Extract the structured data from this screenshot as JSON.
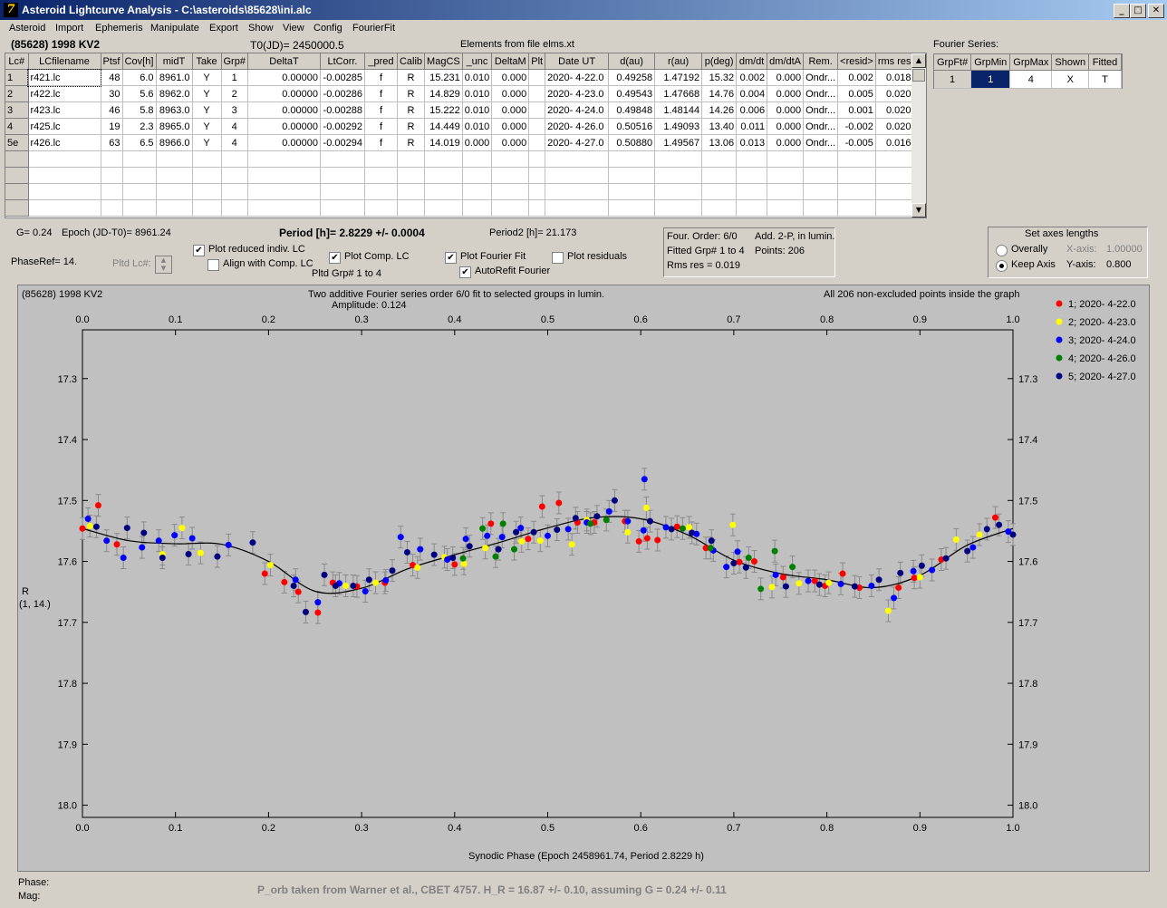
{
  "window": {
    "title": "Asteroid Lightcurve Analysis - C:\\asteroids\\85628\\ini.alc",
    "min": "_",
    "max": "□",
    "close": "✕"
  },
  "menu": [
    "Asteroid",
    "Import",
    "Ephemeris",
    "Manipulate",
    "Export",
    "Show",
    "View",
    "Config",
    "FourierFit"
  ],
  "header": {
    "object": "(85628) 1998 KV2",
    "t0": "T0(JD)= 2450000.5",
    "elements": "Elements from file elms.xt"
  },
  "table": {
    "columns": [
      "Lc#",
      "LCfilename",
      "Ptsf",
      "Cov[h]",
      "midT",
      "Take",
      "Grp#",
      "DeltaT",
      "LtCorr.",
      "_pred",
      "Calib",
      "MagCS",
      "_unc",
      "DeltaM",
      "Plt",
      "Date UT",
      "d(au)",
      "r(au)",
      "p(deg)",
      "dm/dt",
      "dm/dtA",
      "Rem.",
      "<resid>",
      "rms res"
    ],
    "rows": [
      [
        "1",
        "r421.lc",
        "48",
        "6.0",
        "8961.0",
        "Y",
        "1",
        "0.00000",
        "-0.00285",
        "f",
        "R",
        "15.231",
        "0.010",
        "0.000",
        "",
        "2020- 4-22.0",
        "0.49258",
        "1.47192",
        "15.32",
        "0.002",
        "0.000",
        "Ondr...",
        "0.002",
        "0.018"
      ],
      [
        "2",
        "r422.lc",
        "30",
        "5.6",
        "8962.0",
        "Y",
        "2",
        "0.00000",
        "-0.00286",
        "f",
        "R",
        "14.829",
        "0.010",
        "0.000",
        "",
        "2020- 4-23.0",
        "0.49543",
        "1.47668",
        "14.76",
        "0.004",
        "0.000",
        "Ondr...",
        "0.005",
        "0.020"
      ],
      [
        "3",
        "r423.lc",
        "46",
        "5.8",
        "8963.0",
        "Y",
        "3",
        "0.00000",
        "-0.00288",
        "f",
        "R",
        "15.222",
        "0.010",
        "0.000",
        "",
        "2020- 4-24.0",
        "0.49848",
        "1.48144",
        "14.26",
        "0.006",
        "0.000",
        "Ondr...",
        "0.001",
        "0.020"
      ],
      [
        "4",
        "r425.lc",
        "19",
        "2.3",
        "8965.0",
        "Y",
        "4",
        "0.00000",
        "-0.00292",
        "f",
        "R",
        "14.449",
        "0.010",
        "0.000",
        "",
        "2020- 4-26.0",
        "0.50516",
        "1.49093",
        "13.40",
        "0.011",
        "0.000",
        "Ondr...",
        "-0.002",
        "0.020"
      ],
      [
        "5e",
        "r426.lc",
        "63",
        "6.5",
        "8966.0",
        "Y",
        "4",
        "0.00000",
        "-0.00294",
        "f",
        "R",
        "14.019",
        "0.000",
        "0.000",
        "",
        "2020- 4-27.0",
        "0.50880",
        "1.49567",
        "13.06",
        "0.013",
        "0.000",
        "Ondr...",
        "-0.005",
        "0.016"
      ]
    ]
  },
  "fourier": {
    "label": "Fourier Series:",
    "columns": [
      "GrpFt#",
      "GrpMin",
      "GrpMax",
      "Shown",
      "Fitted"
    ],
    "row": [
      "1",
      "1",
      "4",
      "X",
      "T"
    ]
  },
  "params": {
    "g": "G= 0.24",
    "epoch": "Epoch (JD-T0)= 8961.24",
    "period": "Period [h]= 2.8229 +/- 0.0004",
    "period2": "Period2 [h]= 21.173",
    "phaseref": "PhaseRef= 14.",
    "pltd_lc": "Pltd Lc#:",
    "pltd_grp": "Pltd Grp#  1   to   4"
  },
  "checkboxes": {
    "plot_reduced": {
      "label": "Plot reduced indiv. LC",
      "checked": "✔"
    },
    "align_comp": {
      "label": "Align with Comp. LC",
      "checked": ""
    },
    "plot_comp": {
      "label": "Plot Comp. LC",
      "checked": "✔"
    },
    "plot_fourier": {
      "label": "Plot Fourier Fit",
      "checked": "✔"
    },
    "autorefit": {
      "label": "AutoRefit Fourier",
      "checked": "✔"
    },
    "plot_residuals": {
      "label": "Plot residuals",
      "checked": ""
    }
  },
  "fitinfo": {
    "order": "Four. Order:  6/0",
    "add": "Add. 2-P, in lumin.",
    "fitted": "Fitted Grp# 1 to 4",
    "points": "Points: 206",
    "rms": "Rms res     = 0.019"
  },
  "axes_box": {
    "title": "Set axes lengths",
    "overally": "Overally",
    "keep": "Keep Axis",
    "xaxis_label": "X-axis:",
    "xaxis_value": "1.00000",
    "yaxis_label": "Y-axis:",
    "yaxis_value": "0.800"
  },
  "plot": {
    "object": "(85628) 1998 KV2",
    "subtitle": "Two additive Fourier series order 6/0 fit to selected groups in lumin.",
    "amplitude": "Amplitude: 0.124",
    "note": "All 206 non-excluded points inside the graph",
    "ylabel": "R",
    "ylabel2": "(1, 14.)",
    "xlabel": "Synodic Phase (Epoch 2458961.74, Period 2.8229 h)"
  },
  "footer": {
    "phase": "Phase:",
    "mag": "Mag:",
    "note": "P_orb taken from Warner et al., CBET 4757.  H_R = 16.87 +/- 0.10, assuming G = 0.24 +/- 0.11"
  },
  "chart_data": {
    "type": "scatter",
    "xlim": [
      0.0,
      1.0
    ],
    "ylim": [
      17.22,
      18.02
    ],
    "y_inverted": true,
    "xticks": [
      0.0,
      0.1,
      0.2,
      0.3,
      0.4,
      0.5,
      0.6,
      0.7,
      0.8,
      0.9,
      1.0
    ],
    "yticks": [
      17.3,
      17.4,
      17.5,
      17.6,
      17.7,
      17.8,
      17.9,
      18.0
    ],
    "grid": false,
    "legend_position": "right",
    "series": [
      {
        "name": "1; 2020- 4-22.0",
        "color": "#ff0000",
        "points": [
          [
            0.0,
            17.546
          ],
          [
            0.017,
            17.508
          ],
          [
            0.037,
            17.572
          ],
          [
            0.196,
            17.62
          ],
          [
            0.217,
            17.634
          ],
          [
            0.232,
            17.65
          ],
          [
            0.253,
            17.684
          ],
          [
            0.269,
            17.635
          ],
          [
            0.295,
            17.641
          ],
          [
            0.325,
            17.635
          ],
          [
            0.355,
            17.606
          ],
          [
            0.4,
            17.605
          ],
          [
            0.439,
            17.538
          ],
          [
            0.479,
            17.563
          ],
          [
            0.494,
            17.51
          ],
          [
            0.512,
            17.504
          ],
          [
            0.532,
            17.536
          ],
          [
            0.55,
            17.536
          ],
          [
            0.583,
            17.534
          ],
          [
            0.598,
            17.567
          ],
          [
            0.607,
            17.562
          ],
          [
            0.618,
            17.565
          ],
          [
            0.639,
            17.543
          ],
          [
            0.67,
            17.578
          ],
          [
            0.706,
            17.601
          ],
          [
            0.722,
            17.6
          ],
          [
            0.753,
            17.626
          ],
          [
            0.787,
            17.632
          ],
          [
            0.798,
            17.64
          ],
          [
            0.817,
            17.62
          ],
          [
            0.835,
            17.643
          ],
          [
            0.877,
            17.643
          ],
          [
            0.894,
            17.627
          ],
          [
            0.923,
            17.597
          ],
          [
            0.981,
            17.528
          ]
        ]
      },
      {
        "name": "2; 2020- 4-23.0",
        "color": "#ffff00",
        "points": [
          [
            0.008,
            17.542
          ],
          [
            0.086,
            17.588
          ],
          [
            0.107,
            17.545
          ],
          [
            0.127,
            17.586
          ],
          [
            0.202,
            17.606
          ],
          [
            0.283,
            17.64
          ],
          [
            0.315,
            17.635
          ],
          [
            0.36,
            17.61
          ],
          [
            0.389,
            17.593
          ],
          [
            0.41,
            17.604
          ],
          [
            0.433,
            17.578
          ],
          [
            0.472,
            17.567
          ],
          [
            0.492,
            17.566
          ],
          [
            0.526,
            17.572
          ],
          [
            0.542,
            17.532
          ],
          [
            0.586,
            17.552
          ],
          [
            0.606,
            17.512
          ],
          [
            0.652,
            17.544
          ],
          [
            0.699,
            17.54
          ],
          [
            0.741,
            17.642
          ],
          [
            0.77,
            17.636
          ],
          [
            0.802,
            17.635
          ],
          [
            0.866,
            17.681
          ],
          [
            0.9,
            17.626
          ],
          [
            0.939,
            17.564
          ],
          [
            0.964,
            17.556
          ]
        ]
      },
      {
        "name": "3; 2020- 4-24.0",
        "color": "#0000ff",
        "points": [
          [
            0.006,
            17.53
          ],
          [
            0.026,
            17.566
          ],
          [
            0.044,
            17.594
          ],
          [
            0.064,
            17.577
          ],
          [
            0.082,
            17.566
          ],
          [
            0.099,
            17.557
          ],
          [
            0.118,
            17.562
          ],
          [
            0.157,
            17.573
          ],
          [
            0.229,
            17.63
          ],
          [
            0.253,
            17.667
          ],
          [
            0.276,
            17.636
          ],
          [
            0.304,
            17.649
          ],
          [
            0.326,
            17.631
          ],
          [
            0.342,
            17.56
          ],
          [
            0.363,
            17.58
          ],
          [
            0.392,
            17.597
          ],
          [
            0.412,
            17.563
          ],
          [
            0.435,
            17.558
          ],
          [
            0.451,
            17.56
          ],
          [
            0.471,
            17.545
          ],
          [
            0.5,
            17.558
          ],
          [
            0.522,
            17.547
          ],
          [
            0.542,
            17.536
          ],
          [
            0.566,
            17.518
          ],
          [
            0.586,
            17.534
          ],
          [
            0.603,
            17.549
          ],
          [
            0.604,
            17.465
          ],
          [
            0.627,
            17.544
          ],
          [
            0.66,
            17.555
          ],
          [
            0.678,
            17.582
          ],
          [
            0.692,
            17.609
          ],
          [
            0.704,
            17.584
          ],
          [
            0.745,
            17.622
          ],
          [
            0.78,
            17.632
          ],
          [
            0.815,
            17.637
          ],
          [
            0.848,
            17.64
          ],
          [
            0.872,
            17.66
          ],
          [
            0.893,
            17.616
          ],
          [
            0.913,
            17.614
          ],
          [
            0.957,
            17.577
          ],
          [
            0.995,
            17.551
          ]
        ]
      },
      {
        "name": "4; 2020- 4-26.0",
        "color": "#008000",
        "points": [
          [
            0.409,
            17.595
          ],
          [
            0.43,
            17.546
          ],
          [
            0.444,
            17.592
          ],
          [
            0.452,
            17.538
          ],
          [
            0.464,
            17.58
          ],
          [
            0.546,
            17.538
          ],
          [
            0.563,
            17.532
          ],
          [
            0.645,
            17.546
          ],
          [
            0.675,
            17.578
          ],
          [
            0.716,
            17.594
          ],
          [
            0.729,
            17.645
          ],
          [
            0.744,
            17.583
          ],
          [
            0.763,
            17.609
          ]
        ]
      },
      {
        "name": "5; 2020- 4-27.0",
        "color": "#000080",
        "points": [
          [
            0.015,
            17.543
          ],
          [
            0.048,
            17.545
          ],
          [
            0.066,
            17.553
          ],
          [
            0.086,
            17.594
          ],
          [
            0.114,
            17.588
          ],
          [
            0.145,
            17.592
          ],
          [
            0.183,
            17.569
          ],
          [
            0.227,
            17.64
          ],
          [
            0.24,
            17.683
          ],
          [
            0.26,
            17.622
          ],
          [
            0.272,
            17.64
          ],
          [
            0.291,
            17.64
          ],
          [
            0.308,
            17.63
          ],
          [
            0.333,
            17.615
          ],
          [
            0.349,
            17.585
          ],
          [
            0.378,
            17.589
          ],
          [
            0.398,
            17.594
          ],
          [
            0.416,
            17.575
          ],
          [
            0.447,
            17.58
          ],
          [
            0.466,
            17.552
          ],
          [
            0.485,
            17.552
          ],
          [
            0.51,
            17.548
          ],
          [
            0.53,
            17.529
          ],
          [
            0.553,
            17.526
          ],
          [
            0.572,
            17.5
          ],
          [
            0.61,
            17.534
          ],
          [
            0.633,
            17.547
          ],
          [
            0.655,
            17.553
          ],
          [
            0.676,
            17.566
          ],
          [
            0.7,
            17.603
          ],
          [
            0.713,
            17.61
          ],
          [
            0.756,
            17.641
          ],
          [
            0.792,
            17.638
          ],
          [
            0.83,
            17.641
          ],
          [
            0.856,
            17.63
          ],
          [
            0.879,
            17.619
          ],
          [
            0.902,
            17.607
          ],
          [
            0.928,
            17.595
          ],
          [
            0.951,
            17.583
          ],
          [
            0.972,
            17.547
          ],
          [
            0.985,
            17.54
          ],
          [
            1.0,
            17.556
          ]
        ]
      }
    ],
    "fit_curve": [
      [
        0.0,
        17.546
      ],
      [
        0.05,
        17.566
      ],
      [
        0.1,
        17.571
      ],
      [
        0.15,
        17.572
      ],
      [
        0.2,
        17.6
      ],
      [
        0.25,
        17.649
      ],
      [
        0.3,
        17.644
      ],
      [
        0.35,
        17.612
      ],
      [
        0.4,
        17.589
      ],
      [
        0.45,
        17.568
      ],
      [
        0.5,
        17.545
      ],
      [
        0.55,
        17.528
      ],
      [
        0.6,
        17.53
      ],
      [
        0.65,
        17.556
      ],
      [
        0.7,
        17.598
      ],
      [
        0.75,
        17.62
      ],
      [
        0.8,
        17.63
      ],
      [
        0.85,
        17.643
      ],
      [
        0.9,
        17.623
      ],
      [
        0.95,
        17.574
      ],
      [
        1.0,
        17.546
      ]
    ]
  }
}
